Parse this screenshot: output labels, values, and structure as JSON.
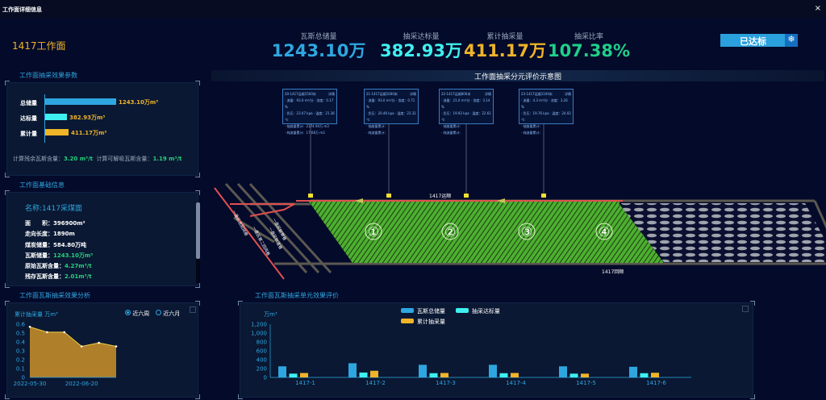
{
  "window": {
    "title": "工作面详细信息",
    "close": "×"
  },
  "face_name": "1417工作面",
  "kpis": [
    {
      "label": "瓦斯总储量",
      "value": "1243.10万",
      "color": "#2ea7e0"
    },
    {
      "label": "抽采达标量",
      "value": "382.93万",
      "color": "#3ff0f0"
    },
    {
      "label": "累计抽采量",
      "value": "411.17万",
      "color": "#f0b429"
    },
    {
      "label": "抽采比率",
      "value": "107.38%",
      "color": "#1fcf8a"
    }
  ],
  "status_button": "已达标",
  "effect": {
    "title": "工作面抽采效果参数",
    "bars": [
      {
        "label": "总储量",
        "value": "1243.10万m³",
        "fraction": 1.0
      },
      {
        "label": "达标量",
        "value": "382.93万m³",
        "fraction": 0.31
      },
      {
        "label": "累计量",
        "value": "411.17万m³",
        "fraction": 0.33
      }
    ],
    "residual_label": "计算残余瓦斯含量：",
    "residual": "3.20 m³/t",
    "desorb_label": "计算可解吸瓦斯含量：",
    "desorb": "1.19 m³/t"
  },
  "basic": {
    "title": "工作面基础信息",
    "name": "名称:1417采煤面",
    "rows": [
      {
        "k": "面　　积：",
        "v": "396900m²",
        "green": false
      },
      {
        "k": "走向长度：",
        "v": "1890m",
        "green": false
      },
      {
        "k": "煤炭储量：",
        "v": "584.80万吨",
        "green": false
      },
      {
        "k": "瓦斯储量：",
        "v": "1243.10万m³",
        "green": true
      },
      {
        "k": "原始瓦斯含量：",
        "v": "4.27m³/t",
        "green": true
      },
      {
        "k": "残存瓦斯含量：",
        "v": "2.01m³/t",
        "green": true
      }
    ]
  },
  "analysis": {
    "title": "工作面瓦斯抽采效果分析",
    "radio1": "近六周",
    "radio2": "近六月"
  },
  "map": {
    "title": "工作面抽采分元评价示意图",
    "top_road": "1417运顺",
    "bottom_road": "1417回顺",
    "tunnels": [
      "一盘区总回风巷",
      "一盘区第二回风巷",
      "一盘区轨道巷",
      "一盘区胶带巷"
    ],
    "units": [
      "①",
      "②",
      "③",
      "④"
    ],
    "tips": [
      {
        "title": "20-1417运顺1500米",
        "tag": "详情",
        "l1": "· 流量：93.0 m³/分 · 浓度：0.17 %",
        "l2": "· 负压：23.07 kpa · 温度：21.36 ℃",
        "l3": "· 抽放量累计：2174.94万 m3",
        "l4": "· 纯流量累计：17.68万 m3"
      },
      {
        "title": "21-1417运顺1000米",
        "tag": "详情",
        "l1": "· 流量：93.0 m³/分 · 浓度：0.71 %",
        "l2": "· 负压：20.46 kpa · 温度：23.31 ℃",
        "l3": "· 抽放量累计：",
        "l4": "· 纯流量累计："
      },
      {
        "title": "22-1417运顺800米",
        "tag": "详情",
        "l1": "· 流量：21.0 m³/分 · 浓度：3.14 %",
        "l2": "· 负压：19.92 kpa · 温度：22.61 ℃",
        "l3": "· 抽放量累计：",
        "l4": "· 纯流量累计："
      },
      {
        "title": "23-1417运顺1100米",
        "tag": "详情",
        "l1": "· 流量：4.3 m³/分 · 浓度：3.26 %",
        "l2": "· 负压：19.76 kpa · 温度：24.02 ℃",
        "l3": "· 抽放量累计：",
        "l4": "· 纯流量累计："
      }
    ]
  },
  "chart_data": [
    {
      "type": "area",
      "title": "工作面瓦斯抽采效果分析",
      "ylabel": "累计抽采量 万m³",
      "ylim": [
        0,
        0.6
      ],
      "yticks": [
        "0",
        "0.1",
        "0.2",
        "0.3",
        "0.4",
        "0.5",
        "0.6"
      ],
      "xtick_labels": [
        "2022-05-30",
        "2022-06-20"
      ],
      "values": [
        0.57,
        0.51,
        0.51,
        0.35,
        0.39,
        0.35
      ],
      "color": "#b07f2a"
    },
    {
      "type": "bar",
      "title": "工作面瓦斯抽采单元效果评价",
      "ylabel": "万m³",
      "ylim": [
        0,
        1200
      ],
      "yticks": [
        "0",
        "200",
        "400",
        "600",
        "800",
        "1,000",
        "1,200"
      ],
      "categories": [
        "1417-1",
        "1417-2",
        "1417-3",
        "1417-4",
        "1417-5",
        "1417-6"
      ],
      "series": [
        {
          "name": "瓦斯总储量",
          "color": "#2ea7e0",
          "values": [
            250,
            320,
            285,
            285,
            250,
            240
          ]
        },
        {
          "name": "抽采达标量",
          "color": "#3ff0f0",
          "values": [
            85,
            110,
            95,
            95,
            85,
            95
          ]
        },
        {
          "name": "累计抽采量",
          "color": "#f0b429",
          "values": [
            100,
            150,
            100,
            100,
            85,
            105
          ]
        }
      ]
    }
  ]
}
